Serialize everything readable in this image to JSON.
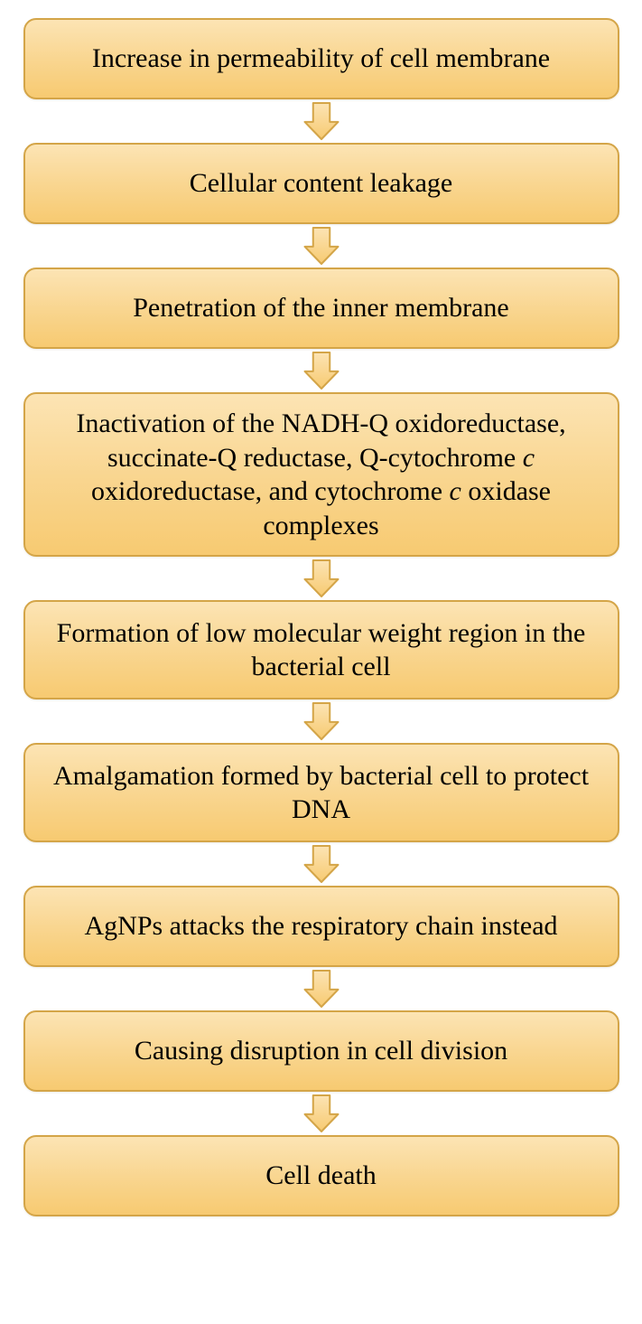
{
  "flowchart": {
    "type": "flowchart",
    "background_color": "#ffffff",
    "box_gradient_top": "#fce4b4",
    "box_gradient_mid": "#f9d691",
    "box_gradient_bottom": "#f7ca71",
    "box_border_color": "#d4a548",
    "box_border_radius": 14,
    "box_border_width": 2,
    "text_color": "#000000",
    "font_family": "Times New Roman",
    "font_size": 30,
    "arrow_fill_top": "#fce4b4",
    "arrow_fill_bottom": "#f7ca71",
    "arrow_stroke": "#d4a548",
    "arrow_width": 44,
    "arrow_height": 44,
    "container_width": 660,
    "nodes": [
      {
        "id": "n1",
        "text": "Increase in permeability of cell membrane",
        "min_height": 90
      },
      {
        "id": "n2",
        "text": "Cellular content leakage",
        "min_height": 90
      },
      {
        "id": "n3",
        "text": "Penetration of the inner membrane",
        "min_height": 90
      },
      {
        "id": "n4",
        "text_segments": [
          {
            "t": "Inactivation of the NADH-Q oxidoreductase, succinate-Q reductase, Q-cytochrome ",
            "italic": false
          },
          {
            "t": "c",
            "italic": true
          },
          {
            "t": " oxidoreductase, and cytochrome ",
            "italic": false
          },
          {
            "t": "c",
            "italic": true
          },
          {
            "t": " oxidase complexes",
            "italic": false
          }
        ],
        "min_height": 180
      },
      {
        "id": "n5",
        "text": "Formation of low molecular weight region in the bacterial cell",
        "min_height": 110
      },
      {
        "id": "n6",
        "text": "Amalgamation formed by bacterial cell to protect DNA",
        "min_height": 110
      },
      {
        "id": "n7",
        "text": "AgNPs attacks the respiratory chain instead",
        "min_height": 90
      },
      {
        "id": "n8",
        "text": "Causing disruption in cell division",
        "min_height": 90
      },
      {
        "id": "n9",
        "text": "Cell death",
        "min_height": 90
      }
    ]
  }
}
